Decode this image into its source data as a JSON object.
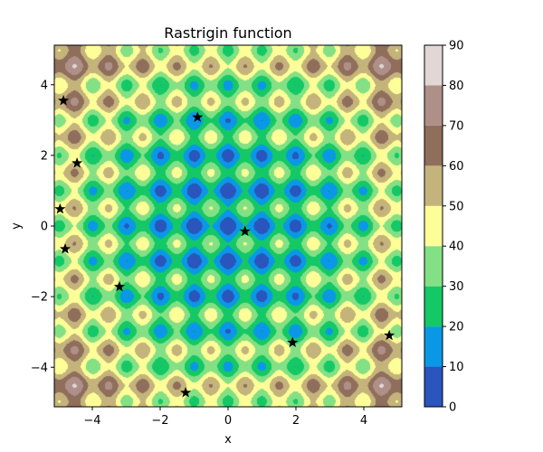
{
  "chart_data": {
    "type": "heatmap",
    "subtype": "filled-contour",
    "title": "Rastrigin function",
    "xlabel": "x",
    "ylabel": "y",
    "xlim": [
      -5.12,
      5.12
    ],
    "ylim": [
      -5.12,
      5.12
    ],
    "x_ticks": [
      -4,
      -2,
      0,
      2,
      4
    ],
    "x_tick_labels": [
      "−4",
      "−2",
      "0",
      "2",
      "4"
    ],
    "y_ticks": [
      -4,
      -2,
      0,
      2,
      4
    ],
    "y_tick_labels": [
      "−4",
      "−2",
      "0",
      "2",
      "4"
    ],
    "function": "rastrigin",
    "contour_levels": [
      0,
      10,
      20,
      30,
      40,
      50,
      60,
      70,
      80,
      90
    ],
    "level_colors": [
      "#2a55bd",
      "#0a98e6",
      "#14c866",
      "#84e084",
      "#fefe98",
      "#c4b47c",
      "#906e5c",
      "#ae9088",
      "#e2d6d6"
    ],
    "colorbar_ticks": [
      0,
      10,
      20,
      30,
      40,
      50,
      60,
      70,
      80,
      90
    ],
    "colorbar_tick_labels": [
      "0",
      "10",
      "20",
      "30",
      "40",
      "50",
      "60",
      "70",
      "80",
      "90"
    ],
    "grid": false,
    "points": [
      {
        "x": -4.85,
        "y": 3.55
      },
      {
        "x": -0.9,
        "y": 3.08
      },
      {
        "x": -4.45,
        "y": 1.78
      },
      {
        "x": -4.95,
        "y": 0.48
      },
      {
        "x": 0.5,
        "y": -0.15
      },
      {
        "x": -4.8,
        "y": -0.65
      },
      {
        "x": -3.2,
        "y": -1.72
      },
      {
        "x": 1.9,
        "y": -3.3
      },
      {
        "x": 4.75,
        "y": -3.1
      },
      {
        "x": -1.25,
        "y": -4.72
      }
    ]
  }
}
